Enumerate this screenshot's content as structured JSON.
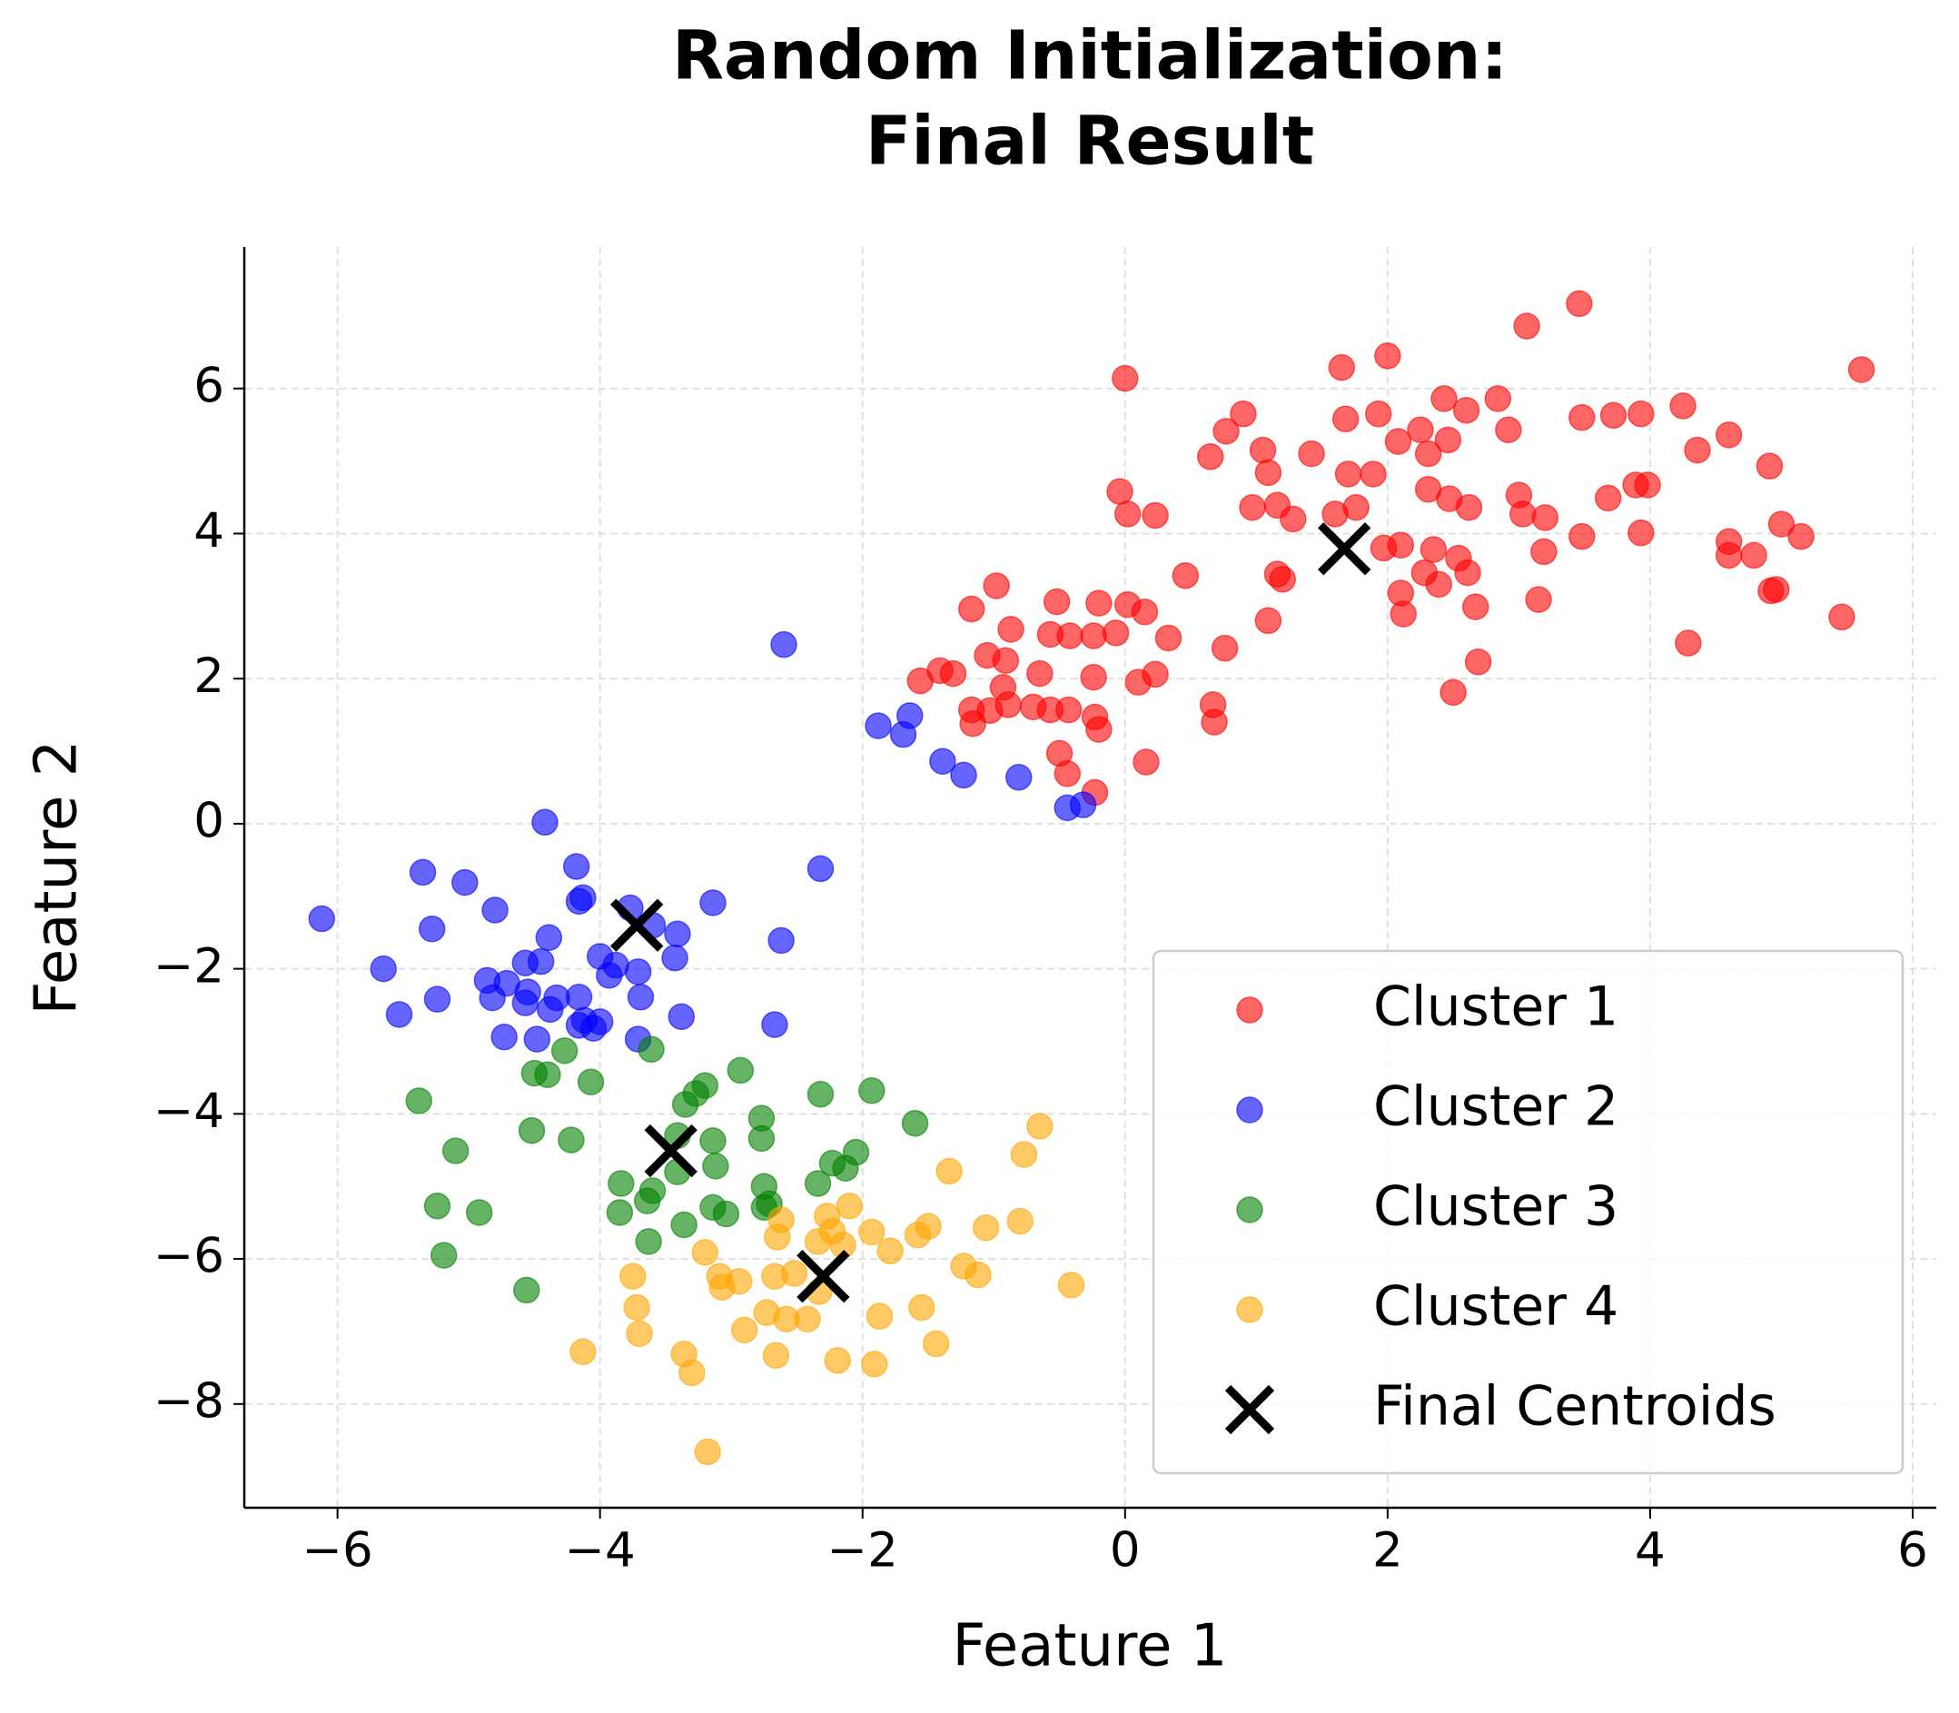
{
  "chart_data": {
    "type": "scatter",
    "title": [
      "Random Initialization:",
      "Final Result"
    ],
    "x_label": "Feature 1",
    "y_label": "Feature 2",
    "xlim": [
      -6.71,
      6.18
    ],
    "ylim": [
      -9.43,
      7.95
    ],
    "xticks": [
      {
        "value": -6,
        "label": "−6"
      },
      {
        "value": -4,
        "label": "−4"
      },
      {
        "value": -2,
        "label": "−2"
      },
      0,
      2,
      4,
      6
    ],
    "yticks": [
      {
        "value": -8,
        "label": "−8"
      },
      {
        "value": -6,
        "label": "−6"
      },
      {
        "value": -4,
        "label": "−4"
      },
      {
        "value": -2,
        "label": "−2"
      },
      0,
      2,
      4,
      6
    ],
    "grid": true,
    "legend": "lower right",
    "series": [
      {
        "name": "Cluster 1",
        "color": "#ff0000",
        "marker": "o",
        "x": [
          5.61,
          3.46,
          3.06,
          2.0,
          1.65,
          0.0,
          2.84,
          2.43,
          2.6,
          1.68,
          1.93,
          0.9,
          3.48,
          3.72,
          3.93,
          4.25,
          4.6,
          4.36,
          4.91,
          2.25,
          2.08,
          2.46,
          1.42,
          1.05,
          0.65,
          0.77,
          2.92,
          2.31,
          1.7,
          1.89,
          1.09,
          -0.04,
          0.02,
          0.23,
          0.97,
          1.16,
          1.28,
          1.6,
          1.76,
          2.31,
          2.47,
          2.62,
          3.0,
          3.03,
          3.2,
          3.68,
          3.89,
          3.98,
          3.93,
          3.48,
          3.19,
          4.6,
          4.6,
          4.79,
          5.0,
          5.15,
          1.97,
          2.1,
          2.35,
          2.54,
          2.28,
          2.61,
          2.39,
          2.1,
          2.12,
          2.67,
          3.15,
          2.69,
          2.5,
          1.09,
          1.16,
          1.2,
          4.92,
          4.96,
          5.46,
          4.29,
          0.46,
          -0.98,
          -1.17,
          -0.52,
          -0.2,
          0.02,
          0.15,
          -0.87,
          -0.57,
          -0.42,
          -0.24,
          -0.07,
          0.33,
          0.76,
          -1.05,
          -0.91,
          -1.41,
          -1.31,
          -1.56,
          -0.65,
          -0.24,
          0.1,
          0.23,
          -0.93,
          -1.17,
          -1.03,
          -0.89,
          -0.7,
          -0.57,
          -0.43,
          -1.16,
          -0.23,
          -0.2,
          0.67,
          0.68,
          -0.5,
          -0.44,
          0.16,
          -0.23
        ],
        "values": [
          6.26,
          7.17,
          6.86,
          6.45,
          6.29,
          6.14,
          5.86,
          5.86,
          5.7,
          5.58,
          5.65,
          5.65,
          5.6,
          5.63,
          5.65,
          5.76,
          5.36,
          5.15,
          4.93,
          5.43,
          5.27,
          5.29,
          5.1,
          5.15,
          5.06,
          5.41,
          5.43,
          5.1,
          4.82,
          4.82,
          4.84,
          4.58,
          4.27,
          4.25,
          4.36,
          4.39,
          4.2,
          4.27,
          4.36,
          4.61,
          4.48,
          4.36,
          4.53,
          4.27,
          4.22,
          4.49,
          4.67,
          4.67,
          4.01,
          3.96,
          3.75,
          3.89,
          3.7,
          3.7,
          4.13,
          3.96,
          3.8,
          3.84,
          3.78,
          3.66,
          3.46,
          3.46,
          3.3,
          3.18,
          2.89,
          2.99,
          3.09,
          2.23,
          1.81,
          2.8,
          3.44,
          3.37,
          3.21,
          3.23,
          2.85,
          2.49,
          3.42,
          3.28,
          2.96,
          3.06,
          3.04,
          3.02,
          2.92,
          2.68,
          2.61,
          2.59,
          2.59,
          2.63,
          2.56,
          2.42,
          2.32,
          2.25,
          2.11,
          2.07,
          1.97,
          2.07,
          2.02,
          1.95,
          2.06,
          1.88,
          1.57,
          1.56,
          1.64,
          1.61,
          1.57,
          1.57,
          1.38,
          1.47,
          1.3,
          1.64,
          1.4,
          0.97,
          0.69,
          0.85,
          0.43
        ]
      },
      {
        "name": "Cluster 2",
        "color": "#0000ff",
        "marker": "o",
        "x": [
          -2.6,
          -1.88,
          -1.64,
          -1.69,
          -1.39,
          -1.23,
          -0.81,
          -0.44,
          -0.32,
          -4.42,
          -4.18,
          -2.32,
          -6.12,
          -5.35,
          -5.03,
          -5.28,
          -4.8,
          -4.16,
          -4.13,
          -3.77,
          -3.6,
          -3.14,
          -3.41,
          -2.62,
          -4.39,
          -4.0,
          -3.43,
          -3.88,
          -5.65,
          -4.57,
          -4.45,
          -4.86,
          -3.93,
          -3.71,
          -4.71,
          -4.82,
          -4.55,
          -4.33,
          -4.16,
          -3.69,
          -4.57,
          -4.38,
          -5.24,
          -5.53,
          -4.12,
          -4.0,
          -4.16,
          -4.05,
          -3.38,
          -2.67,
          -4.73,
          -4.48,
          -3.71
        ],
        "values": [
          2.47,
          1.35,
          1.49,
          1.23,
          0.86,
          0.67,
          0.64,
          0.22,
          0.26,
          0.02,
          -0.59,
          -0.62,
          -1.31,
          -0.67,
          -0.81,
          -1.45,
          -1.19,
          -1.07,
          -1.02,
          -1.16,
          -1.4,
          -1.09,
          -1.52,
          -1.61,
          -1.57,
          -1.83,
          -1.85,
          -1.95,
          -2.0,
          -1.92,
          -1.9,
          -2.16,
          -2.09,
          -2.04,
          -2.2,
          -2.4,
          -2.32,
          -2.4,
          -2.39,
          -2.39,
          -2.47,
          -2.56,
          -2.42,
          -2.63,
          -2.71,
          -2.73,
          -2.78,
          -2.82,
          -2.66,
          -2.77,
          -2.94,
          -2.97,
          -2.97
        ]
      },
      {
        "name": "Cluster 3",
        "color": "#008000",
        "marker": "o",
        "x": [
          -4.27,
          -3.61,
          -2.93,
          -4.5,
          -4.4,
          -4.07,
          -3.2,
          -3.27,
          -2.32,
          -1.93,
          -5.38,
          -3.35,
          -2.77,
          -1.6,
          -4.52,
          -4.22,
          -2.77,
          -5.1,
          -3.14,
          -3.41,
          -2.05,
          -2.23,
          -2.13,
          -3.12,
          -3.41,
          -3.84,
          -2.75,
          -2.34,
          -3.6,
          -3.64,
          -5.24,
          -2.71,
          -2.75,
          -3.14,
          -3.04,
          -4.92,
          -3.85,
          -3.36,
          -3.63,
          -5.19,
          -4.56
        ],
        "values": [
          -3.13,
          -3.11,
          -3.4,
          -3.44,
          -3.46,
          -3.56,
          -3.61,
          -3.72,
          -3.73,
          -3.68,
          -3.82,
          -3.87,
          -4.06,
          -4.13,
          -4.23,
          -4.36,
          -4.34,
          -4.51,
          -4.37,
          -4.3,
          -4.53,
          -4.68,
          -4.75,
          -4.72,
          -4.8,
          -4.96,
          -5.0,
          -4.96,
          -5.06,
          -5.2,
          -5.27,
          -5.24,
          -5.29,
          -5.29,
          -5.38,
          -5.36,
          -5.36,
          -5.53,
          -5.76,
          -5.95,
          -6.43
        ]
      },
      {
        "name": "Cluster 4",
        "color": "#ffa500",
        "marker": "o",
        "x": [
          -0.65,
          -0.77,
          -1.34,
          -2.1,
          -2.27,
          -2.62,
          -1.5,
          -1.06,
          -0.8,
          -2.23,
          -1.93,
          -1.58,
          -2.65,
          -2.34,
          -2.15,
          -1.79,
          -3.2,
          -1.23,
          -1.12,
          -3.75,
          -3.09,
          -2.94,
          -2.67,
          -2.52,
          -0.41,
          -3.07,
          -2.33,
          -3.72,
          -2.73,
          -1.55,
          -2.58,
          -2.42,
          -1.87,
          -3.7,
          -2.9,
          -1.44,
          -4.13,
          -3.36,
          -2.66,
          -2.19,
          -1.91,
          -3.3,
          -3.18
        ],
        "values": [
          -4.17,
          -4.56,
          -4.79,
          -5.27,
          -5.41,
          -5.46,
          -5.55,
          -5.57,
          -5.48,
          -5.62,
          -5.63,
          -5.67,
          -5.7,
          -5.76,
          -5.81,
          -5.89,
          -5.91,
          -6.1,
          -6.22,
          -6.24,
          -6.24,
          -6.31,
          -6.24,
          -6.2,
          -6.36,
          -6.39,
          -6.45,
          -6.67,
          -6.74,
          -6.67,
          -6.83,
          -6.83,
          -6.79,
          -7.03,
          -6.98,
          -7.17,
          -7.28,
          -7.31,
          -7.33,
          -7.4,
          -7.45,
          -7.57,
          -8.66
        ]
      },
      {
        "name": "Final Centroids",
        "color": "#000000",
        "marker": "x",
        "x": [
          1.67,
          -3.72,
          -3.46,
          -2.3
        ],
        "values": [
          3.79,
          -1.4,
          -4.51,
          -6.24
        ]
      }
    ]
  }
}
